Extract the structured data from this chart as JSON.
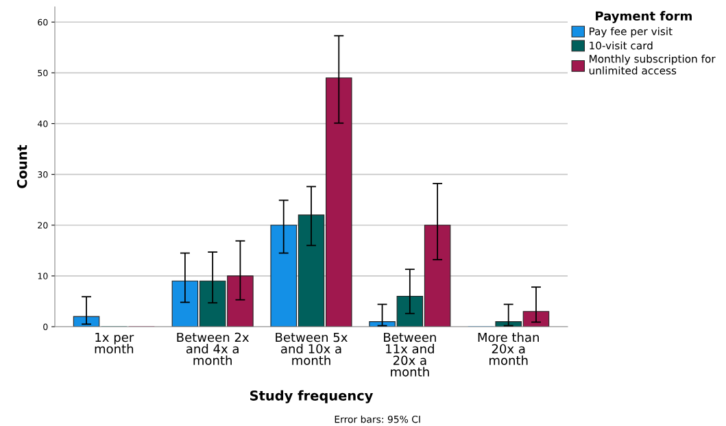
{
  "chart_data": {
    "type": "bar",
    "xlabel": "Study frequency",
    "ylabel": "Count",
    "legend_title": "Payment form",
    "annotations": [
      "Error bars: 95% CI"
    ],
    "categories": [
      "1x per month",
      "Between 2x and 4x a month",
      "Between 5x and 10x a month",
      "Between 11x and 20x a month",
      "More than 20x a month"
    ],
    "series": [
      {
        "name": "Pay fee per visit",
        "color": "#1490e6",
        "values": [
          2,
          9,
          20,
          1,
          0
        ],
        "errors": [
          [
            0.5,
            5.9
          ],
          [
            4.8,
            14.5
          ],
          [
            14.5,
            24.9
          ],
          [
            0.2,
            4.4
          ],
          null
        ]
      },
      {
        "name": "10-visit card",
        "color": "#00605c",
        "values": [
          0,
          9,
          22,
          6,
          1
        ],
        "errors": [
          null,
          [
            4.7,
            14.7
          ],
          [
            16.0,
            27.6
          ],
          [
            2.6,
            11.3
          ],
          [
            0.2,
            4.4
          ]
        ]
      },
      {
        "name": "Monthly subscription for unlimited access",
        "color": "#a0184e",
        "values": [
          0,
          10,
          49,
          20,
          3
        ],
        "errors": [
          null,
          [
            5.3,
            16.9
          ],
          [
            40.1,
            57.3
          ],
          [
            13.2,
            28.2
          ],
          [
            0.9,
            7.8
          ]
        ]
      }
    ],
    "ylim": [
      0,
      63
    ],
    "yticks": [
      0,
      10,
      20,
      30,
      40,
      50,
      60
    ],
    "grid": "y",
    "legend": "top right"
  }
}
